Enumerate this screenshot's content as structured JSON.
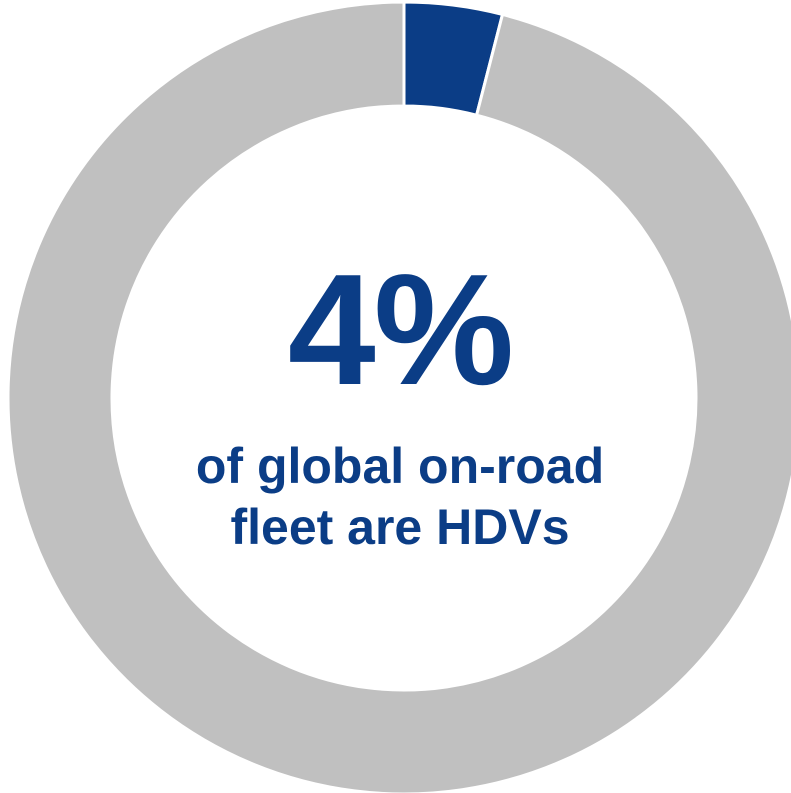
{
  "chart_data": {
    "type": "pie",
    "donut": true,
    "slices": [
      {
        "value": 4,
        "color": "#0b3d86"
      },
      {
        "value": 96,
        "color": "#c0c0c0"
      }
    ],
    "center_value": "4%",
    "center_caption_lines": [
      "of global on-road",
      "fleet are HDVs"
    ],
    "legend": "none"
  },
  "colors": {
    "accent": "#0b3d86",
    "remainder": "#c0c0c0",
    "background": "#ffffff"
  }
}
